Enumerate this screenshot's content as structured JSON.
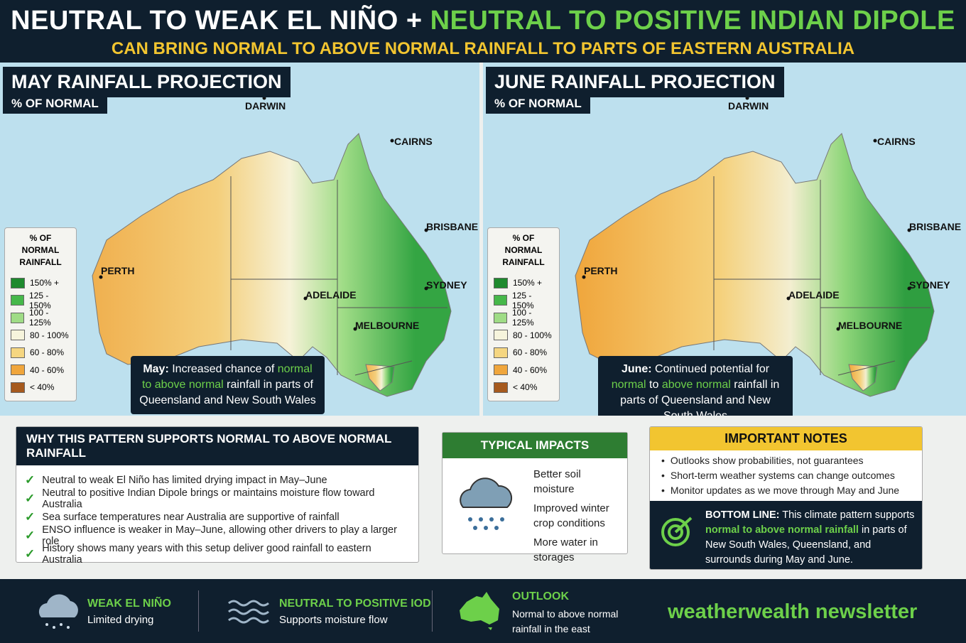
{
  "header": {
    "title_a": "NEUTRAL TO WEAK EL NIÑO +",
    "title_b": "NEUTRAL TO POSITIVE INDIAN DIPOLE",
    "subtitle": "CAN BRING NORMAL TO ABOVE NORMAL RAINFALL TO PARTS OF EASTERN AUSTRALIA"
  },
  "maps": [
    {
      "title": "MAY RAINFALL PROJECTION",
      "subtitle": "% OF NORMAL",
      "cities": [
        "DARWIN",
        "CAIRNS",
        "BRISBANE",
        "SYDNEY",
        "MELBOURNE",
        "ADELAIDE",
        "PERTH"
      ],
      "note": [
        "May:",
        " Increased chance of ",
        "normal to above normal",
        " rainfall in parts of Queensland and New South Wales"
      ]
    },
    {
      "title": "JUNE RAINFALL PROJECTION",
      "subtitle": "% OF NORMAL",
      "cities": [
        "DARWIN",
        "CAIRNS",
        "BRISBANE",
        "SYDNEY",
        "MELBOURNE",
        "ADELAIDE",
        "PERTH"
      ],
      "note": [
        "June:",
        " Continued potential for ",
        "normal",
        " to ",
        "above normal",
        " rainfall in parts of Queensland and New South Wales"
      ]
    }
  ],
  "legend": {
    "title": "% OF NORMAL RAINFALL",
    "items": [
      {
        "label": "150% +",
        "color": "#1e8a2e"
      },
      {
        "label": "125 - 150%",
        "color": "#46b84a"
      },
      {
        "label": "100 - 125%",
        "color": "#9fdc86"
      },
      {
        "label": "80 - 100%",
        "color": "#f6f4dc"
      },
      {
        "label": "60 - 80%",
        "color": "#f5d681"
      },
      {
        "label": "40 - 60%",
        "color": "#f0a63c"
      },
      {
        "label": "< 40%",
        "color": "#a65a1e"
      }
    ]
  },
  "why": {
    "title": "WHY THIS PATTERN SUPPORTS NORMAL TO ABOVE NORMAL RAINFALL",
    "items": [
      "Neutral to weak El Niño has limited drying impact in May–June",
      "Neutral to positive Indian Dipole brings or maintains moisture flow toward Australia",
      "Sea surface temperatures near Australia are supportive of rainfall",
      "ENSO influence is weaker in May–June, allowing other drivers to play a larger role",
      "History shows many years with this setup deliver good rainfall to eastern Australia"
    ]
  },
  "impacts": {
    "title": "TYPICAL IMPACTS",
    "items": [
      "Better soil moisture",
      "Improved winter crop conditions",
      "More water in storages"
    ]
  },
  "notes": {
    "title": "IMPORTANT NOTES",
    "items": [
      "Outlooks show probabilities, not guarantees",
      "Short-term weather systems can change outcomes",
      "Monitor updates as we move through May and June"
    ],
    "bottom_line": [
      "BOTTOM LINE:",
      " This climate pattern supports ",
      "normal to above normal rainfall",
      " in parts of New South Wales, Queensland, and surrounds during May and June."
    ]
  },
  "footer": {
    "items": [
      {
        "title": "WEAK EL NIÑO",
        "text": "Limited drying"
      },
      {
        "title": "NEUTRAL TO POSITIVE IOD",
        "text": "Supports moisture flow"
      },
      {
        "title": "OUTLOOK",
        "text": "Normal to above normal rainfall in the east"
      }
    ],
    "brand": "weatherwealth newsletter"
  }
}
